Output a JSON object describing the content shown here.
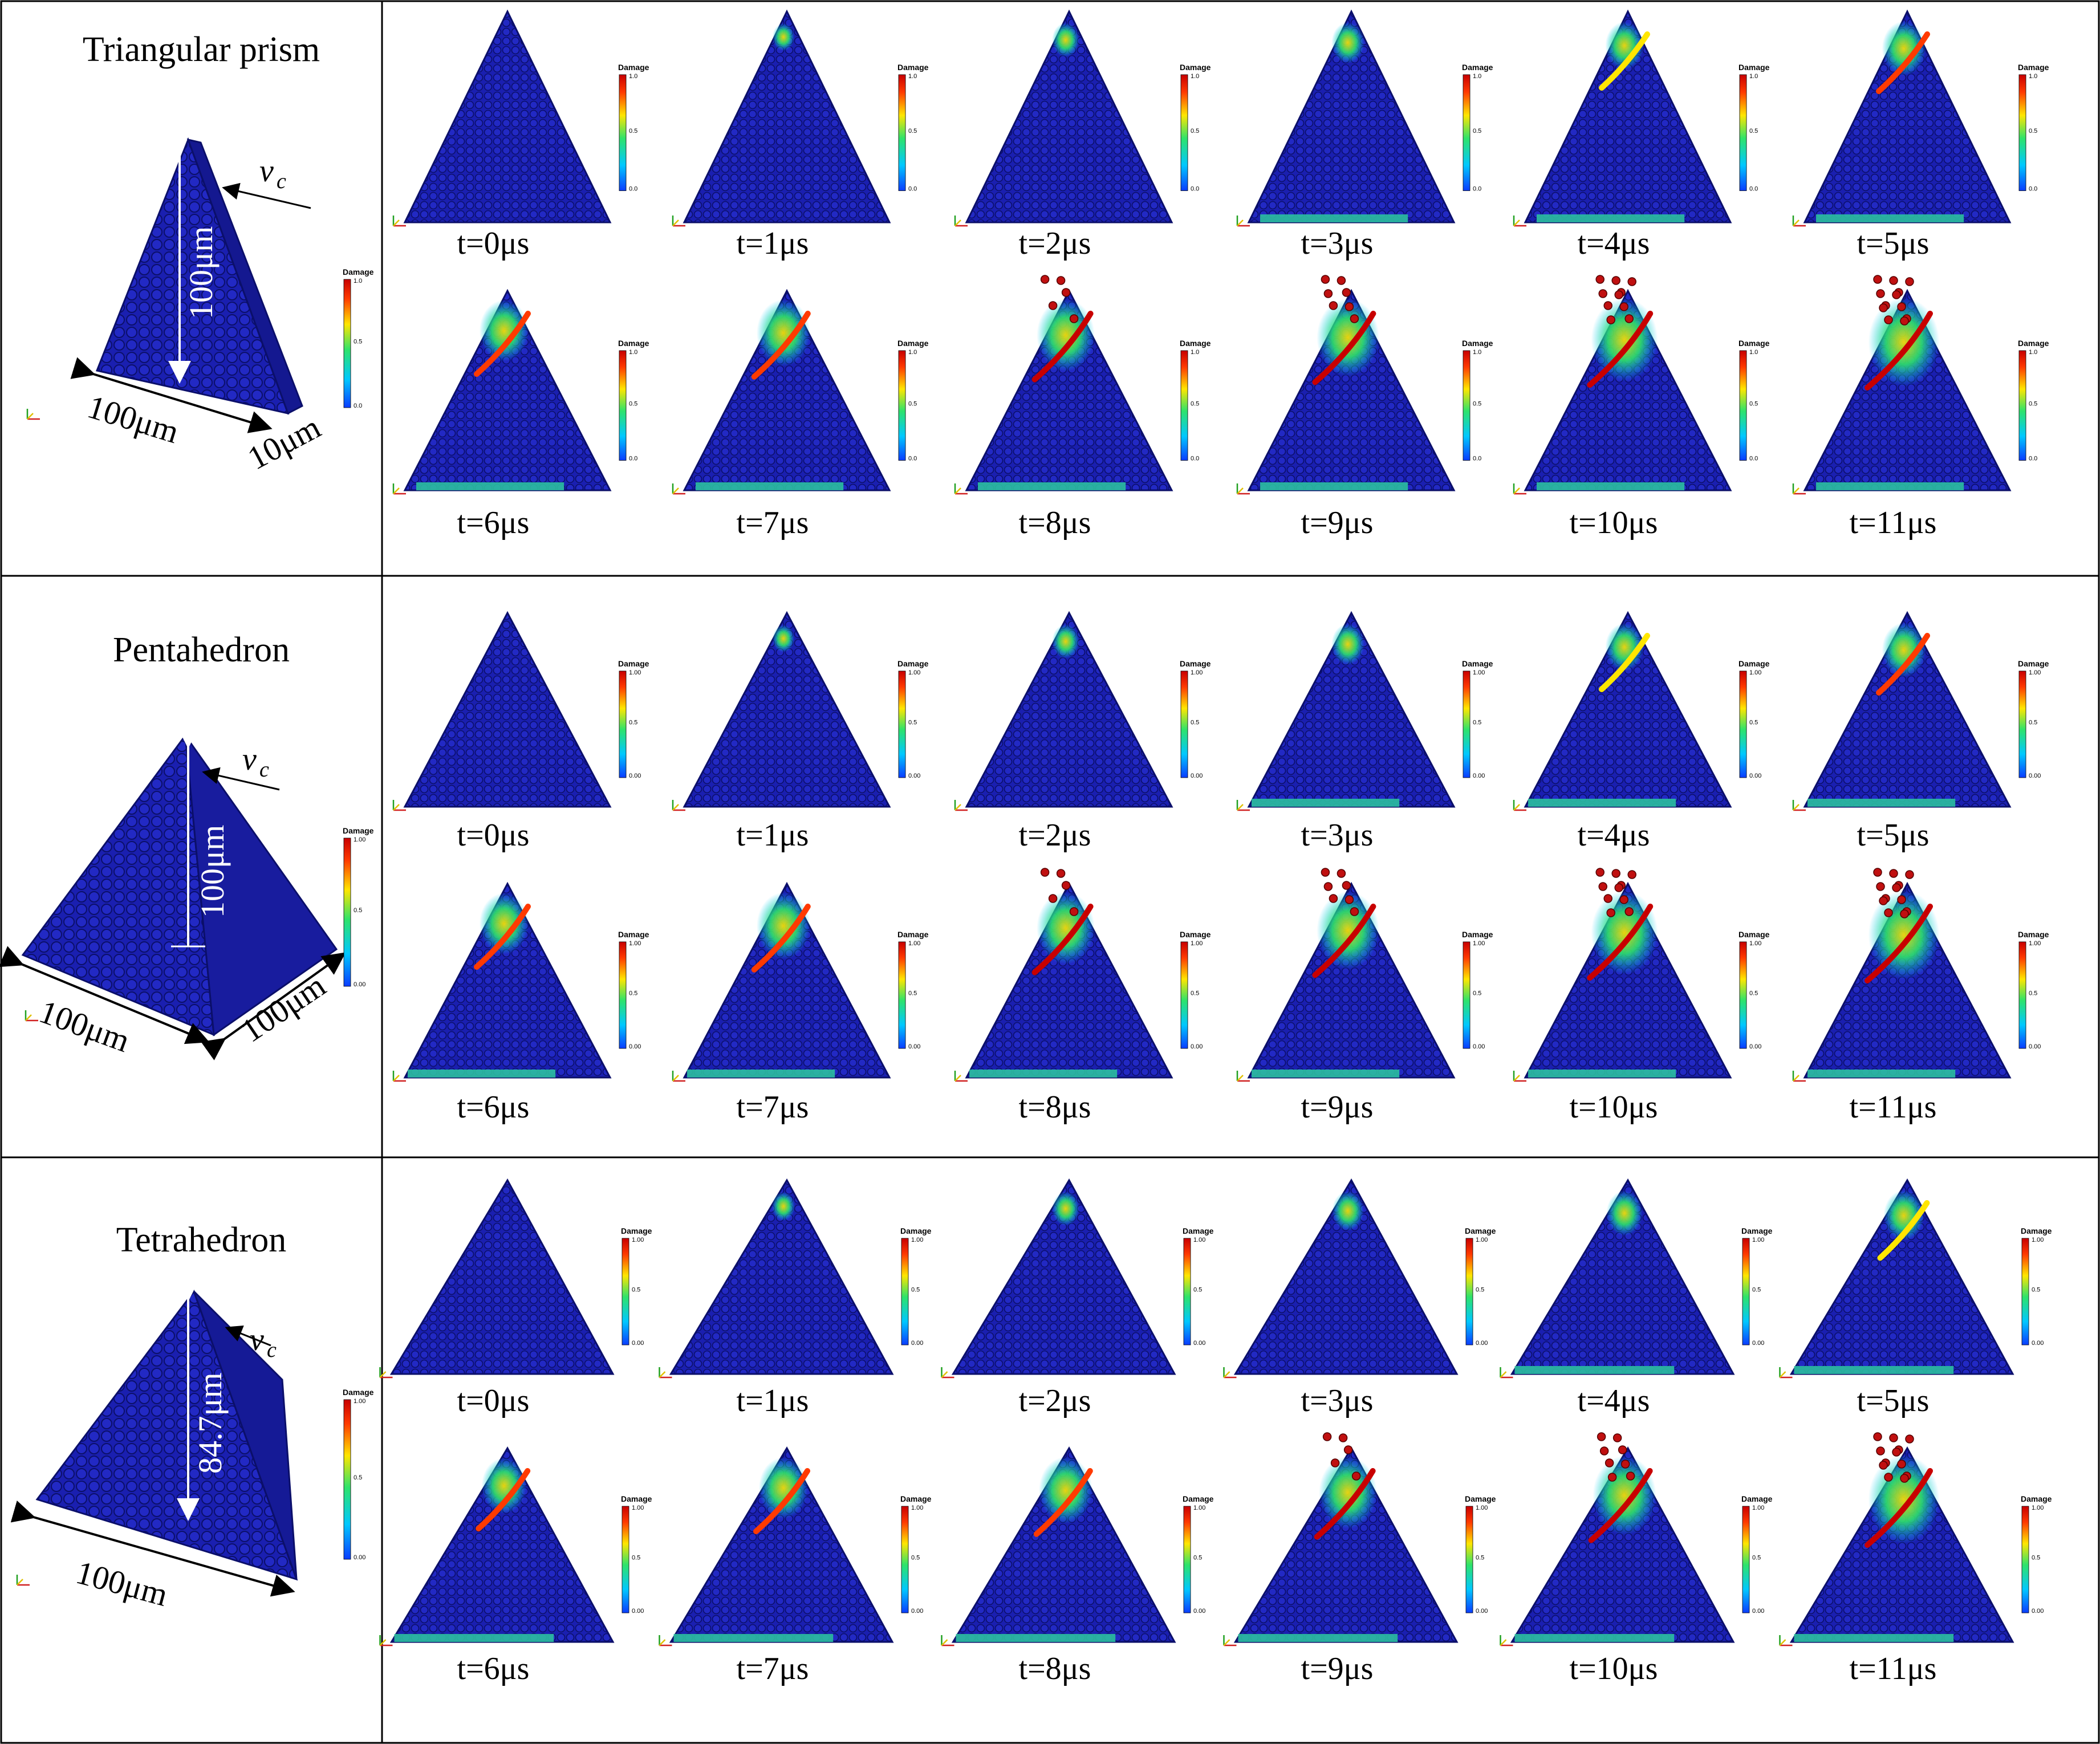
{
  "colors": {
    "particle": "#1a1fb0",
    "particle_dark": "#0b0f6a",
    "colormap": [
      "#0a3cff",
      "#00c8ff",
      "#2ee36b",
      "#ffe600",
      "#ff3a00",
      "#c80000"
    ]
  },
  "colorbar": {
    "title": "Damage",
    "ticks": [
      "1.0",
      "0.5",
      "0.0"
    ]
  },
  "rows": [
    {
      "title": "Triangular prism",
      "model": {
        "kind": "prism",
        "height_label": "100μm",
        "base_label": "100μm",
        "depth_label": "10μm",
        "velocity_label": "v",
        "velocity_sub": "c"
      },
      "colorbar_ticks": [
        "1.0",
        "0.5",
        "0.0"
      ],
      "frames": [
        {
          "label": "t=0μs",
          "damage": 0.0
        },
        {
          "label": "t=1μs",
          "damage": 0.1
        },
        {
          "label": "t=2μs",
          "damage": 0.2
        },
        {
          "label": "t=3μs",
          "damage": 0.3
        },
        {
          "label": "t=4μs",
          "damage": 0.4
        },
        {
          "label": "t=5μs",
          "damage": 0.5
        },
        {
          "label": "t=6μs",
          "damage": 0.6
        },
        {
          "label": "t=7μs",
          "damage": 0.68
        },
        {
          "label": "t=8μs",
          "damage": 0.76
        },
        {
          "label": "t=9μs",
          "damage": 0.84
        },
        {
          "label": "t=10μs",
          "damage": 0.92
        },
        {
          "label": "t=11μs",
          "damage": 1.0
        }
      ]
    },
    {
      "title": "Pentahedron",
      "model": {
        "kind": "pyramid",
        "height_label": "100μm",
        "base_label": "100μm",
        "depth_label": "100μm",
        "velocity_label": "v",
        "velocity_sub": "c"
      },
      "colorbar_ticks": [
        "1.00",
        "0.5",
        "0.00"
      ],
      "frames": [
        {
          "label": "t=0μs",
          "damage": 0.0
        },
        {
          "label": "t=1μs",
          "damage": 0.1
        },
        {
          "label": "t=2μs",
          "damage": 0.2
        },
        {
          "label": "t=3μs",
          "damage": 0.3
        },
        {
          "label": "t=4μs",
          "damage": 0.4
        },
        {
          "label": "t=5μs",
          "damage": 0.5
        },
        {
          "label": "t=6μs",
          "damage": 0.6
        },
        {
          "label": "t=7μs",
          "damage": 0.68
        },
        {
          "label": "t=8μs",
          "damage": 0.76
        },
        {
          "label": "t=9μs",
          "damage": 0.84
        },
        {
          "label": "t=10μs",
          "damage": 0.92
        },
        {
          "label": "t=11μs",
          "damage": 1.0
        }
      ]
    },
    {
      "title": "Tetrahedron",
      "model": {
        "kind": "tetra",
        "height_label": "84.7μm",
        "base_label": "100μm",
        "depth_label": "",
        "velocity_label": "v",
        "velocity_sub": "c"
      },
      "colorbar_ticks": [
        "1.00",
        "0.5",
        "0.00"
      ],
      "frames": [
        {
          "label": "t=0μs",
          "damage": 0.05
        },
        {
          "label": "t=1μs",
          "damage": 0.12
        },
        {
          "label": "t=2μs",
          "damage": 0.2
        },
        {
          "label": "t=3μs",
          "damage": 0.28
        },
        {
          "label": "t=4μs",
          "damage": 0.36
        },
        {
          "label": "t=5μs",
          "damage": 0.44
        },
        {
          "label": "t=6μs",
          "damage": 0.52
        },
        {
          "label": "t=7μs",
          "damage": 0.6
        },
        {
          "label": "t=8μs",
          "damage": 0.68
        },
        {
          "label": "t=9μs",
          "damage": 0.76
        },
        {
          "label": "t=10μs",
          "damage": 0.86
        },
        {
          "label": "t=11μs",
          "damage": 1.0
        }
      ]
    }
  ]
}
